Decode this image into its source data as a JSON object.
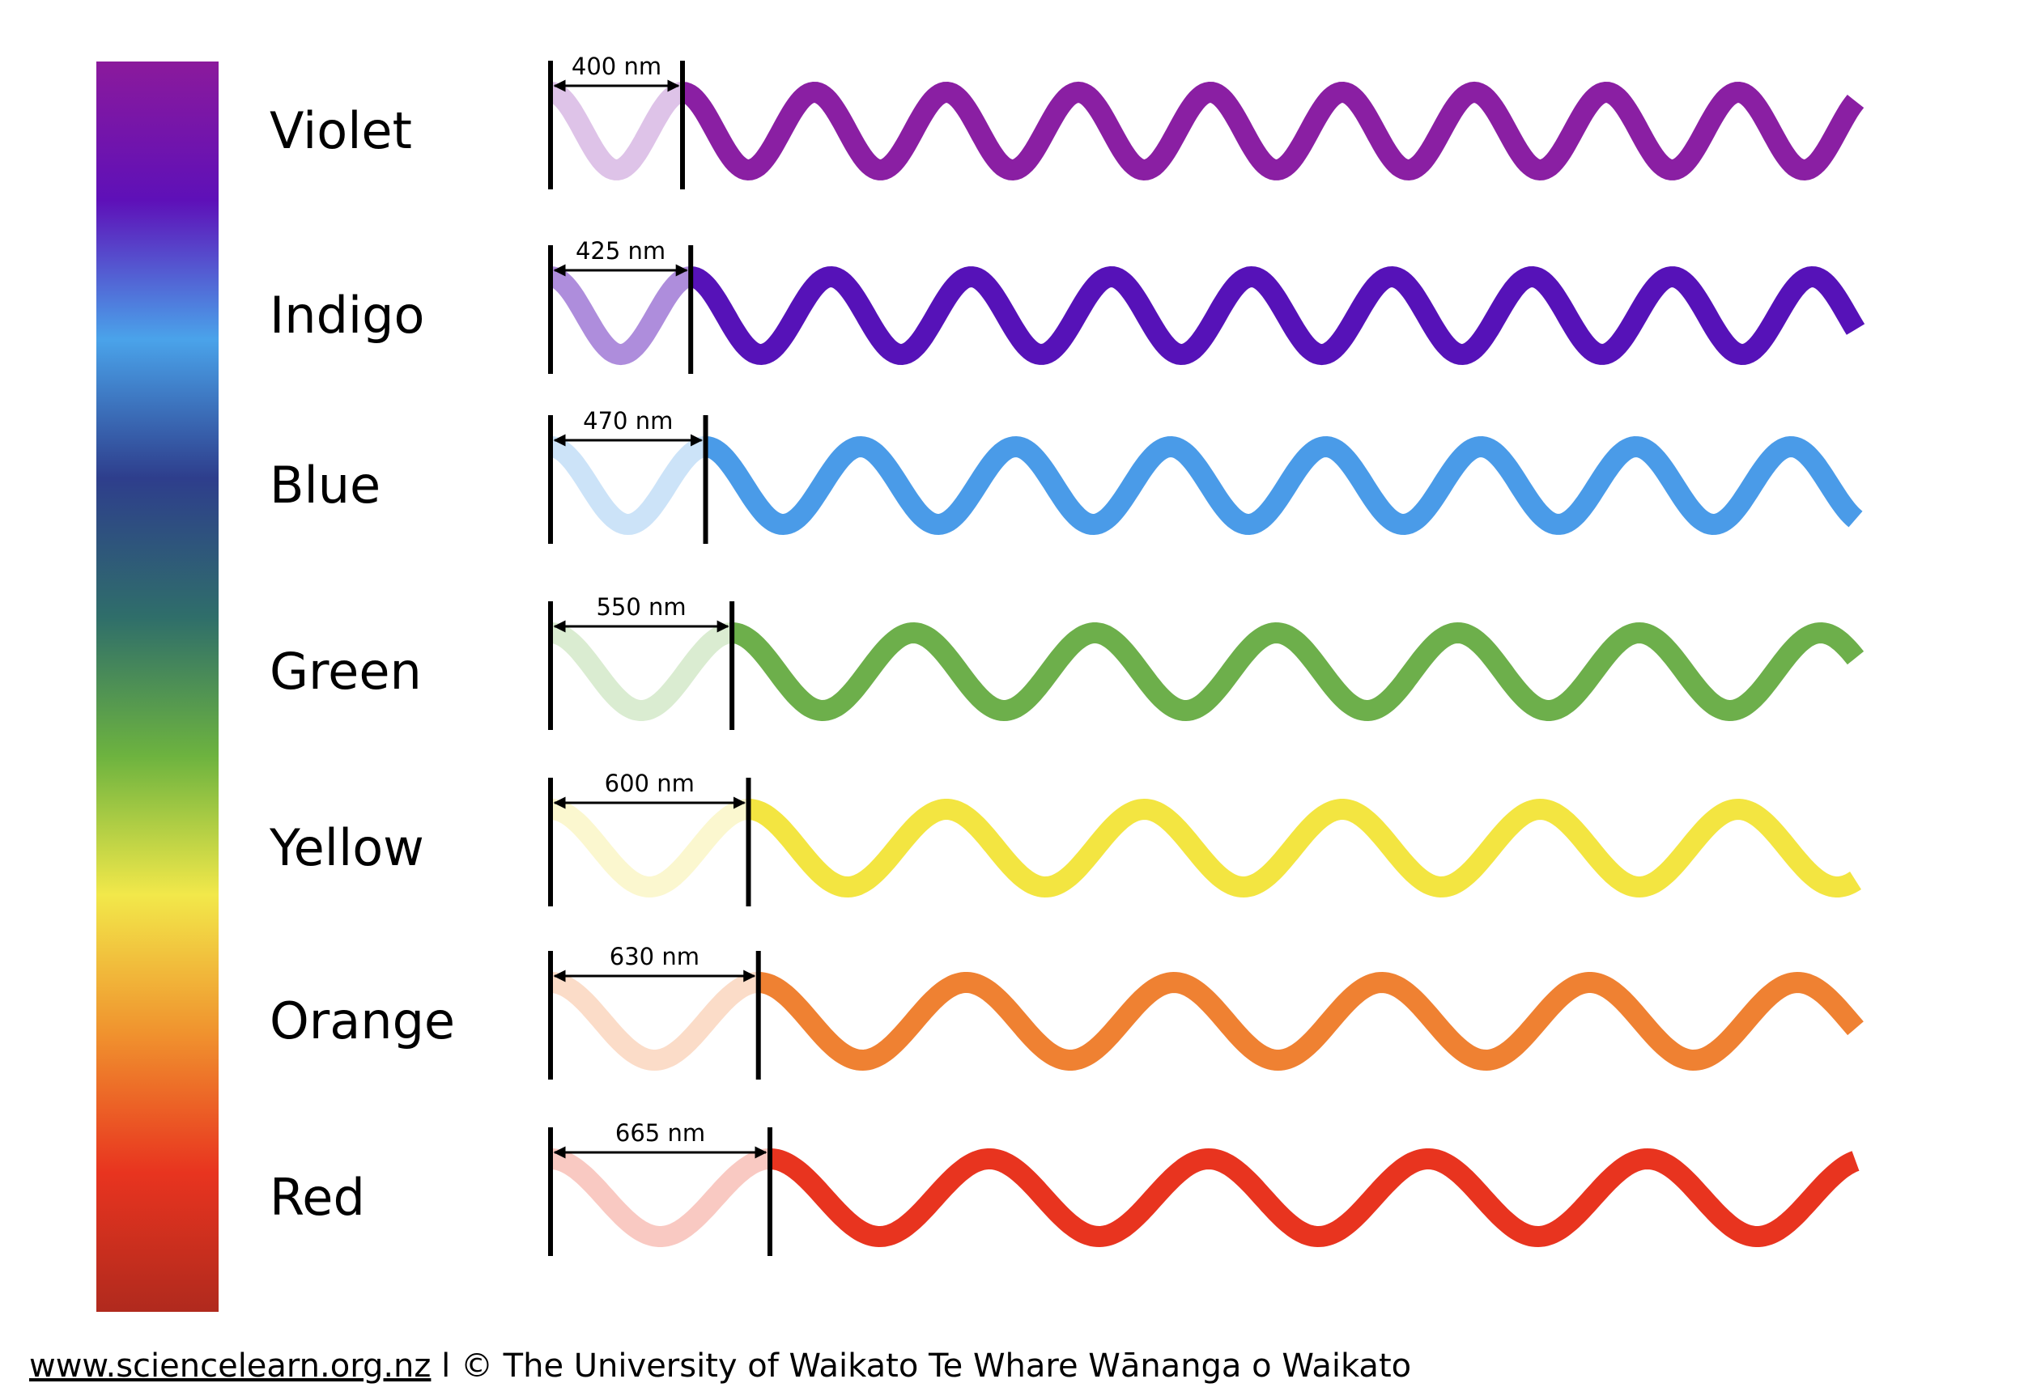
{
  "spectrum_bar": {
    "colors": [
      "#8B1A9C",
      "#5E10B8",
      "#4AA3EA",
      "#2E3E8C",
      "#2F6E6A",
      "#6DB33F",
      "#F2E84A",
      "#F0922E",
      "#E8341F",
      "#B02A1E"
    ]
  },
  "rows": [
    {
      "name": "Violet",
      "wavelength": "400 nm",
      "color": "#8A1FA3",
      "light_color": "#DEC3E8"
    },
    {
      "name": "Indigo",
      "wavelength": "425 nm",
      "color": "#5612B8",
      "light_color": "#AE8DDC"
    },
    {
      "name": "Blue",
      "wavelength": "470 nm",
      "color": "#4A9BE8",
      "light_color": "#CCE3F8"
    },
    {
      "name": "Green",
      "wavelength": "550 nm",
      "color": "#6DAF4B",
      "light_color": "#DAECD1"
    },
    {
      "name": "Yellow",
      "wavelength": "600 nm",
      "color": "#F3E541",
      "light_color": "#FBF7CF"
    },
    {
      "name": "Orange",
      "wavelength": "630 nm",
      "color": "#EF8132",
      "light_color": "#FBDCC8"
    },
    {
      "name": "Red",
      "wavelength": "665 nm",
      "color": "#E8341F",
      "light_color": "#F9C9C2"
    }
  ],
  "footer": {
    "link": "www.sciencelearn.org.nz",
    "separator": " l ",
    "copyright": "© The University of Waikato Te Whare Wānanga o Waikato"
  }
}
